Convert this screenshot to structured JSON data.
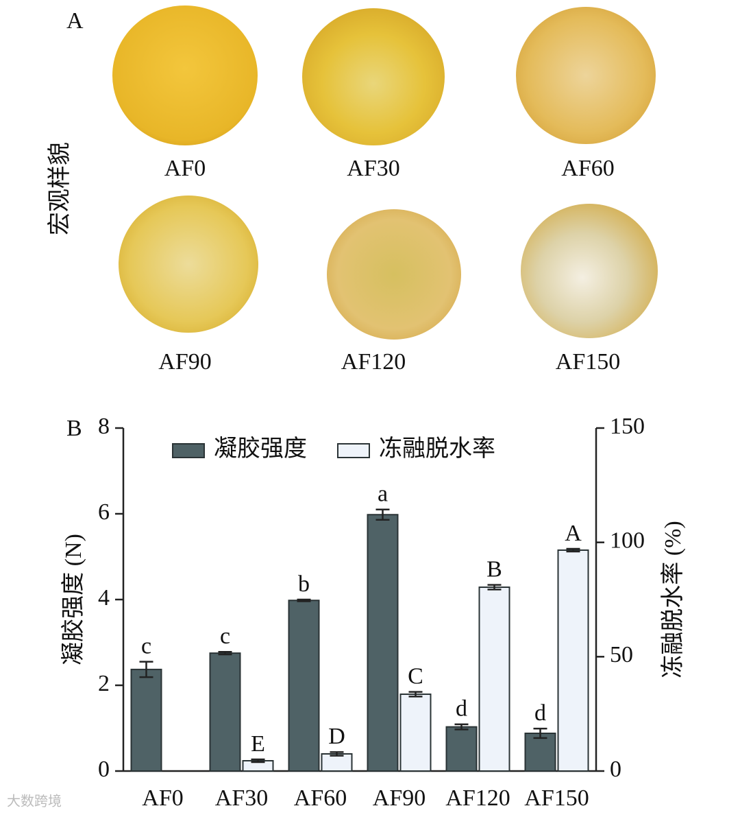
{
  "panel_a": {
    "label": "A",
    "title": "宏观样貌",
    "samples": [
      "AF0",
      "AF30",
      "AF60",
      "AF90",
      "AF120",
      "AF150"
    ]
  },
  "chart_data": {
    "type": "bar",
    "panel_label": "B",
    "categories": [
      "AF0",
      "AF30",
      "AF60",
      "AF90",
      "AF120",
      "AF150"
    ],
    "ylabel": "凝胶强度 (N)",
    "y2label": "冻融脱水率 (%)",
    "ylim": [
      0,
      8
    ],
    "yticks": [
      0,
      2,
      4,
      6,
      8
    ],
    "y2lim": [
      0,
      150
    ],
    "y2ticks": [
      0,
      50,
      100,
      150
    ],
    "legend": "top",
    "series": [
      {
        "name": "凝胶强度",
        "color": "#4f6266",
        "edgecolor": "#2a3335",
        "values": [
          2.37,
          2.75,
          3.98,
          5.98,
          1.03,
          0.88
        ],
        "errors": [
          0.18,
          0.03,
          0.02,
          0.12,
          0.06,
          0.11
        ],
        "letters": [
          "c",
          "c",
          "b",
          "a",
          "d",
          "d"
        ]
      },
      {
        "name": "冻融脱水率",
        "color": "#eef3fa",
        "edgecolor": "#2a3335",
        "axis": "y2",
        "values": [
          null,
          4.5,
          7.5,
          33.6,
          80.4,
          96.6
        ],
        "errors": [
          null,
          0.6,
          0.8,
          1.0,
          1.0,
          0.6
        ],
        "letters": [
          null,
          "E",
          "D",
          "C",
          "B",
          "A"
        ]
      }
    ]
  },
  "watermark": "大数跨境"
}
